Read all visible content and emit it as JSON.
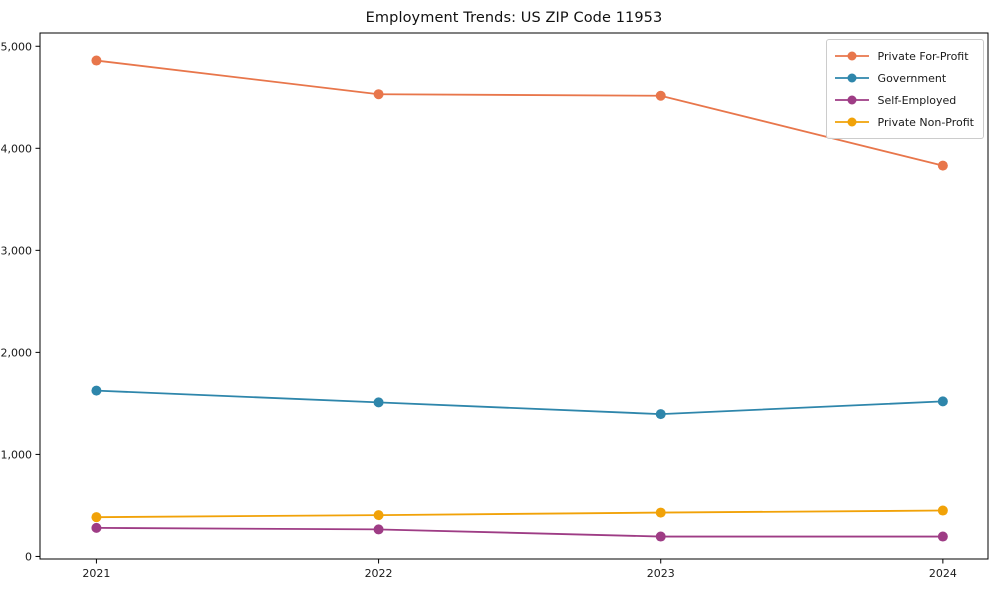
{
  "chart_data": {
    "type": "line",
    "title": "Employment Trends: US ZIP Code 11953",
    "x": [
      2021,
      2022,
      2023,
      2024
    ],
    "x_tick_labels": [
      "2021",
      "2022",
      "2023",
      "2024"
    ],
    "series": [
      {
        "name": "Private For-Profit",
        "color": "#E8764B",
        "values": [
          4860,
          4530,
          4515,
          3830
        ]
      },
      {
        "name": "Government",
        "color": "#2E86AB",
        "values": [
          1625,
          1510,
          1395,
          1520
        ]
      },
      {
        "name": "Self-Employed",
        "color": "#9E3C85",
        "values": [
          280,
          265,
          195,
          195
        ]
      },
      {
        "name": "Private Non-Profit",
        "color": "#F1A208",
        "values": [
          385,
          405,
          430,
          450
        ]
      }
    ],
    "y_ticks": [
      0,
      1000,
      2000,
      3000,
      4000,
      5000
    ],
    "y_tick_labels": [
      "0",
      "1,000",
      "2,000",
      "3,000",
      "4,000",
      "5,000"
    ],
    "xlim": [
      2020.8,
      2024.16
    ],
    "ylim": [
      -25,
      5130
    ],
    "grid": false,
    "legend_position": "upper right",
    "marker": "circle",
    "axis_color": "#000000",
    "text_color": "#1a1a1a",
    "line_width": 1.8,
    "marker_radius": 5
  }
}
